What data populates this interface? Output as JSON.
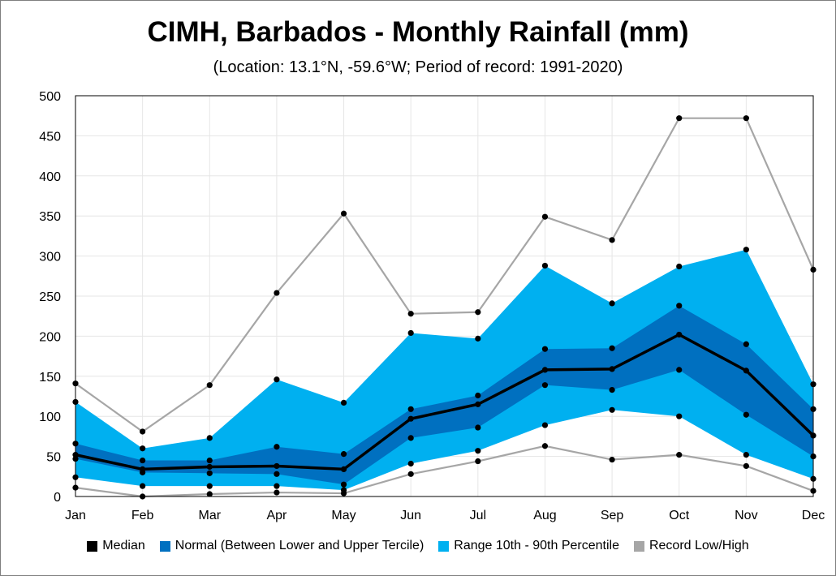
{
  "chart_data": {
    "type": "area",
    "title": "CIMH, Barbados - Monthly Rainfall (mm)",
    "subtitle": "(Location: 13.1°N, -59.6°W; Period of record: 1991-2020)",
    "categories": [
      "Jan",
      "Feb",
      "Mar",
      "Apr",
      "May",
      "Jun",
      "Jul",
      "Aug",
      "Sep",
      "Oct",
      "Nov",
      "Dec"
    ],
    "ylim": [
      0,
      500
    ],
    "yticks": [
      0,
      50,
      100,
      150,
      200,
      250,
      300,
      350,
      400,
      450,
      500
    ],
    "grid": true,
    "legend_position": "bottom",
    "series": [
      {
        "name": "Median",
        "color": "#000000",
        "role": "median",
        "values": [
          52,
          34,
          37,
          38,
          34,
          97,
          115,
          158,
          159,
          202,
          157,
          76
        ]
      },
      {
        "name": "Normal (Between Lower and Upper Tercile)",
        "color": "#0070c0",
        "role": "normal-band",
        "lower": [
          47,
          30,
          29,
          28,
          15,
          73,
          86,
          139,
          133,
          158,
          102,
          50
        ],
        "upper": [
          66,
          45,
          45,
          62,
          53,
          109,
          126,
          184,
          185,
          238,
          190,
          109
        ]
      },
      {
        "name": "Range 10th - 90th Percentile",
        "color": "#00b0f0",
        "role": "percentile-band",
        "lower": [
          24,
          13,
          13,
          13,
          8,
          41,
          57,
          89,
          108,
          100,
          52,
          22
        ],
        "upper": [
          118,
          60,
          73,
          146,
          117,
          204,
          197,
          288,
          241,
          287,
          308,
          140
        ]
      },
      {
        "name": "Record Low/High",
        "color": "#a6a6a6",
        "role": "record",
        "lower": [
          11,
          0,
          3,
          5,
          4,
          28,
          44,
          63,
          46,
          52,
          38,
          7
        ],
        "upper": [
          141,
          81,
          139,
          254,
          353,
          228,
          230,
          349,
          320,
          472,
          472,
          283
        ]
      }
    ]
  }
}
